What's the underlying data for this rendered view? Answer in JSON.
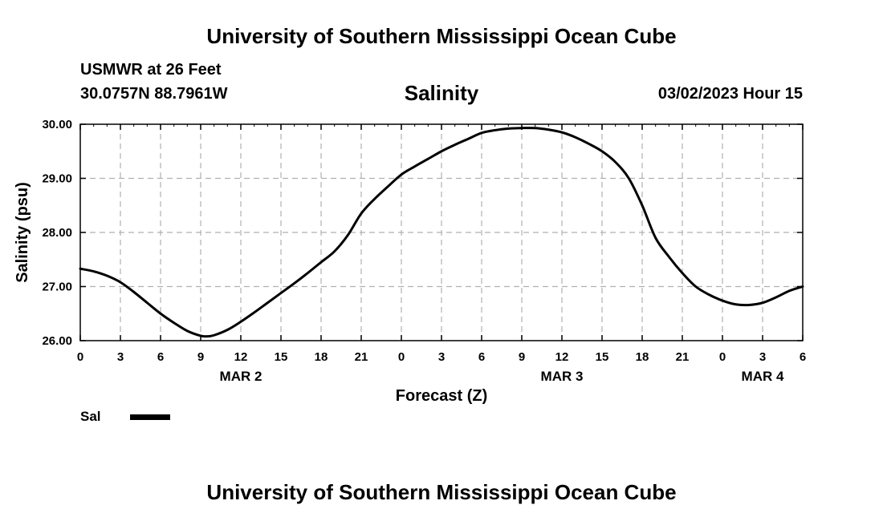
{
  "header": {
    "title": "University of Southern Mississippi Ocean Cube",
    "station": "USMWR at 26 Feet",
    "coords": "30.0757N  88.7961W",
    "datetime": "03/02/2023 Hour 15"
  },
  "footer": {
    "title": "University of Southern Mississippi Ocean Cube"
  },
  "legend": {
    "label": "Sal"
  },
  "chart_data": {
    "type": "line",
    "title": "Salinity",
    "xlabel": "Forecast (Z)",
    "ylabel": "Salinity (psu)",
    "ylim": [
      26.0,
      30.0
    ],
    "xlim": [
      0,
      54
    ],
    "grid": true,
    "x_tick_labels": [
      "0",
      "3",
      "6",
      "9",
      "12",
      "15",
      "18",
      "21",
      "0",
      "3",
      "6",
      "9",
      "12",
      "15",
      "18",
      "21",
      "0",
      "3",
      "6"
    ],
    "y_tick_labels": [
      "26.00",
      "27.00",
      "28.00",
      "29.00",
      "30.00"
    ],
    "y_ticks": [
      26,
      27,
      28,
      29,
      30
    ],
    "day_labels": [
      {
        "text": "MAR 2",
        "at_hour": 12
      },
      {
        "text": "MAR 3",
        "at_hour": 36
      },
      {
        "text": "MAR 4",
        "at_hour": 51
      }
    ],
    "series": [
      {
        "name": "Sal",
        "x": [
          0,
          1,
          2,
          3,
          4,
          5,
          6,
          7,
          8,
          9,
          9.5,
          10,
          11,
          12,
          13,
          14,
          15,
          16,
          17,
          18,
          19,
          20,
          21,
          22,
          23,
          24,
          25,
          26,
          27,
          28,
          29,
          30,
          31,
          32,
          33,
          34,
          35,
          36,
          37,
          38,
          39,
          40,
          41,
          42,
          43,
          44,
          45,
          46,
          47,
          48,
          49,
          50,
          51,
          52,
          53,
          54
        ],
        "values": [
          27.33,
          27.28,
          27.2,
          27.08,
          26.9,
          26.7,
          26.5,
          26.33,
          26.18,
          26.09,
          26.08,
          26.1,
          26.2,
          26.35,
          26.52,
          26.7,
          26.88,
          27.06,
          27.25,
          27.45,
          27.65,
          27.95,
          28.35,
          28.62,
          28.85,
          29.07,
          29.22,
          29.36,
          29.5,
          29.62,
          29.73,
          29.84,
          29.89,
          29.92,
          29.93,
          29.93,
          29.9,
          29.85,
          29.76,
          29.64,
          29.5,
          29.3,
          29.0,
          28.5,
          27.9,
          27.55,
          27.25,
          27.0,
          26.85,
          26.74,
          26.67,
          26.66,
          26.7,
          26.8,
          26.92,
          27.0
        ]
      }
    ]
  }
}
